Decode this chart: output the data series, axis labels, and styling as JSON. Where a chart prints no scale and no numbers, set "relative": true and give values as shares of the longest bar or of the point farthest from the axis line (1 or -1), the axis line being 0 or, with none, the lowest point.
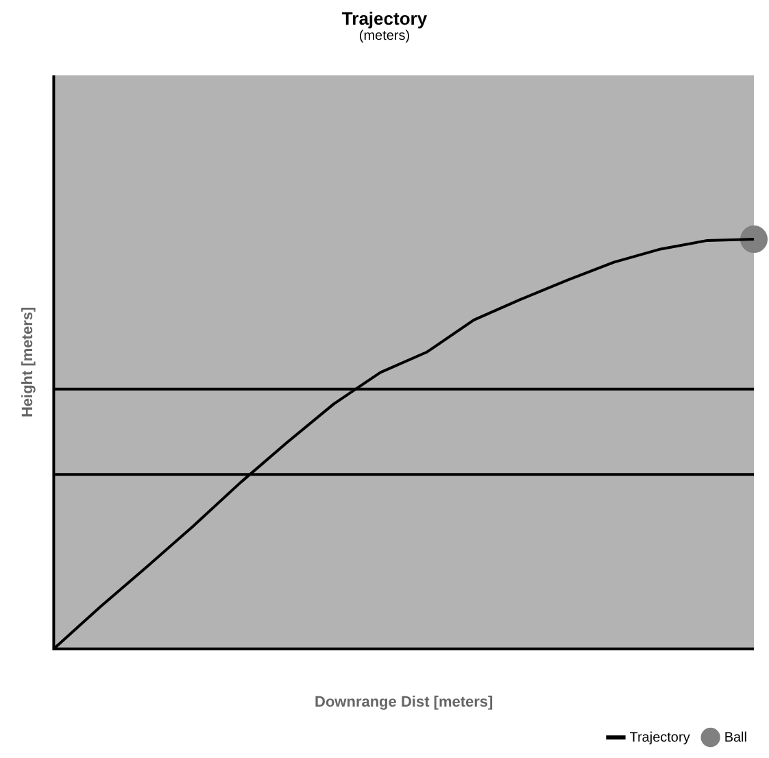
{
  "chart_data": {
    "type": "line",
    "title": "Trajectory",
    "subtitle": "(meters)",
    "xlabel": "Downrange Dist [meters]",
    "ylabel": "Height [meters]",
    "relative": true,
    "grid": false,
    "legend": "bottom right",
    "marker": "none",
    "categories": [
      null,
      null,
      null,
      null,
      null,
      null,
      null,
      null,
      null,
      null,
      null,
      null,
      null,
      null,
      null,
      null
    ],
    "series": [
      {
        "name": "Trajectory",
        "color": "#000000",
        "values": [
          0,
          0.103,
          0.201,
          0.301,
          0.406,
          0.504,
          0.598,
          0.675,
          0.725,
          0.803,
          0.853,
          0.9,
          0.944,
          0.976,
          0.997,
          1
        ]
      },
      {
        "name": "Ball",
        "marker": "circle",
        "color": "#808080",
        "values": [
          null,
          null,
          null,
          null,
          null,
          null,
          null,
          null,
          null,
          null,
          null,
          null,
          null,
          null,
          null,
          1
        ]
      }
    ],
    "ref_lines": [
      {
        "axis": "y",
        "value": 0.634,
        "color": "#000000"
      },
      {
        "axis": "y",
        "value": 0.426,
        "color": "#000000"
      }
    ]
  }
}
